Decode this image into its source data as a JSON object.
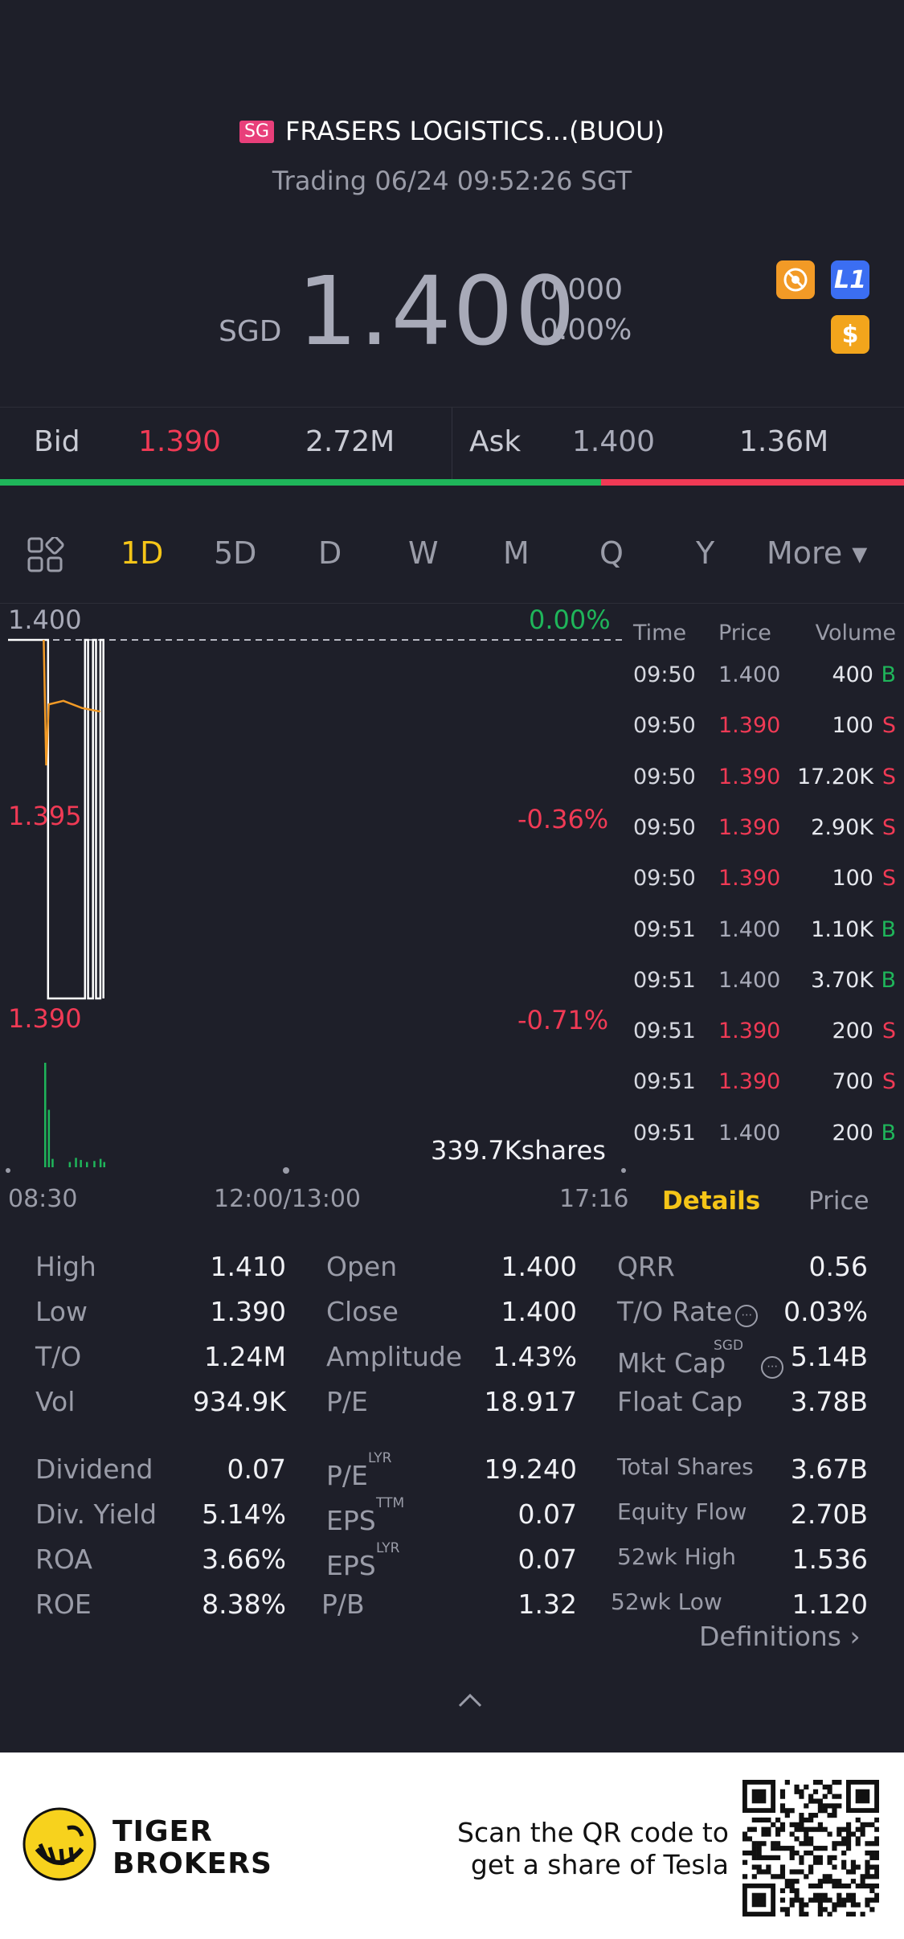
{
  "header": {
    "market_badge": "SG",
    "title": "FRASERS LOGISTICS...(BUOU)",
    "status": "Trading 06/24 09:52:26 SGT"
  },
  "quote": {
    "currency": "SGD",
    "price": "1.400",
    "change": "0.000",
    "change_pct": "0.00%",
    "icons": [
      "no-trade-icon",
      "level1-icon",
      "dollar-icon"
    ],
    "icon_l1_text": "L1",
    "icon_dollar_text": "$"
  },
  "bid_ask": {
    "bid_label": "Bid",
    "bid_price": "1.390",
    "bid_volume": "2.72M",
    "ask_label": "Ask",
    "ask_price": "1.400",
    "ask_volume": "1.36M",
    "bid_share": 0.665
  },
  "tabs": [
    "1D",
    "5D",
    "D",
    "W",
    "M",
    "Q",
    "Y",
    "More ▾"
  ],
  "active_tab": "1D",
  "chart": {
    "y_top": "1.400",
    "y_mid": "1.395",
    "y_bottom": "1.390",
    "pct_top": "0.00%",
    "pct_mid": "-0.36%",
    "pct_bottom": "-0.71%",
    "volume_label": "339.7Kshares",
    "x_start": "08:30",
    "x_mid": "12:00/13:00",
    "x_end": "17:16"
  },
  "chart_data": {
    "type": "line",
    "ylim": [
      1.39,
      1.4
    ],
    "prev_close": 1.4,
    "price_series": [
      {
        "t": 0.0,
        "v": 1.4
      },
      {
        "t": 0.045,
        "v": 1.4
      },
      {
        "t": 0.065,
        "v": 1.4
      },
      {
        "t": 0.065,
        "v": 1.39
      },
      {
        "t": 0.125,
        "v": 1.39
      },
      {
        "t": 0.125,
        "v": 1.4
      },
      {
        "t": 0.13,
        "v": 1.4
      },
      {
        "t": 0.13,
        "v": 1.39
      },
      {
        "t": 0.138,
        "v": 1.39
      },
      {
        "t": 0.138,
        "v": 1.4
      },
      {
        "t": 0.143,
        "v": 1.4
      },
      {
        "t": 0.143,
        "v": 1.39
      },
      {
        "t": 0.15,
        "v": 1.39
      },
      {
        "t": 0.15,
        "v": 1.4
      },
      {
        "t": 0.155,
        "v": 1.4
      },
      {
        "t": 0.155,
        "v": 1.39
      }
    ],
    "avg_series": [
      {
        "t": 0.058,
        "v": 1.4
      },
      {
        "t": 0.06,
        "v": 1.3982
      },
      {
        "t": 0.062,
        "v": 1.3965
      },
      {
        "t": 0.066,
        "v": 1.3982
      },
      {
        "t": 0.09,
        "v": 1.3983
      },
      {
        "t": 0.12,
        "v": 1.3981
      },
      {
        "t": 0.15,
        "v": 1.398
      }
    ],
    "volume_bars": [
      {
        "t": 0.06,
        "v": 1.0
      },
      {
        "t": 0.066,
        "v": 0.55
      },
      {
        "t": 0.072,
        "v": 0.08
      },
      {
        "t": 0.1,
        "v": 0.05
      },
      {
        "t": 0.11,
        "v": 0.09
      },
      {
        "t": 0.118,
        "v": 0.07
      },
      {
        "t": 0.128,
        "v": 0.05
      },
      {
        "t": 0.14,
        "v": 0.06
      },
      {
        "t": 0.15,
        "v": 0.08
      },
      {
        "t": 0.156,
        "v": 0.05
      }
    ]
  },
  "time_sales": {
    "headers": [
      "Time",
      "Price",
      "Volume"
    ],
    "rows": [
      {
        "time": "09:50",
        "price": "1.400",
        "volume": "400",
        "side": "B"
      },
      {
        "time": "09:50",
        "price": "1.390",
        "volume": "100",
        "side": "S"
      },
      {
        "time": "09:50",
        "price": "1.390",
        "volume": "17.20K",
        "side": "S"
      },
      {
        "time": "09:50",
        "price": "1.390",
        "volume": "2.90K",
        "side": "S"
      },
      {
        "time": "09:50",
        "price": "1.390",
        "volume": "100",
        "side": "S"
      },
      {
        "time": "09:51",
        "price": "1.400",
        "volume": "1.10K",
        "side": "B"
      },
      {
        "time": "09:51",
        "price": "1.400",
        "volume": "3.70K",
        "side": "B"
      },
      {
        "time": "09:51",
        "price": "1.390",
        "volume": "200",
        "side": "S"
      },
      {
        "time": "09:51",
        "price": "1.390",
        "volume": "700",
        "side": "S"
      },
      {
        "time": "09:51",
        "price": "1.400",
        "volume": "200",
        "side": "B"
      }
    ]
  },
  "detail_tabs": {
    "details": "Details",
    "price": "Price"
  },
  "stats": {
    "col1": [
      {
        "label": "High",
        "value": "1.410"
      },
      {
        "label": "Low",
        "value": "1.390"
      },
      {
        "label": "T/O",
        "value": "1.24M"
      },
      {
        "label": "Vol",
        "value": "934.9K"
      },
      {
        "label": "Dividend",
        "value": "0.07"
      },
      {
        "label": "Div. Yield",
        "value": "5.14%"
      },
      {
        "label": "ROA",
        "value": "3.66%"
      },
      {
        "label": "ROE",
        "value": "8.38%"
      }
    ],
    "col2": [
      {
        "label": "Open",
        "value": "1.400"
      },
      {
        "label": "Close",
        "value": "1.400"
      },
      {
        "label": "Amplitude",
        "value": "1.43%"
      },
      {
        "label": "P/E",
        "value": "18.917"
      },
      {
        "label": "P/E",
        "sup": "LYR",
        "value": "19.240"
      },
      {
        "label": "EPS",
        "sup": "TTM",
        "value": "0.07"
      },
      {
        "label": "EPS",
        "sup": "LYR",
        "value": "0.07"
      },
      {
        "label": "P/B",
        "value": "1.32"
      }
    ],
    "col3": [
      {
        "label": "QRR",
        "value": "0.56"
      },
      {
        "label": "T/O Rate",
        "value": "0.03%"
      },
      {
        "label": "Mkt Cap",
        "sup": "SGD",
        "value": "5.14B"
      },
      {
        "label": "Float Cap",
        "value": "3.78B"
      },
      {
        "label": "Total Shares",
        "value": "3.67B"
      },
      {
        "label": "Equity Flow",
        "value": "2.70B"
      },
      {
        "label": "52wk High",
        "value": "1.536"
      },
      {
        "label": "52wk Low",
        "value": "1.120"
      }
    ],
    "definitions": "Definitions ›",
    "info_glyph": "⋯"
  },
  "footer": {
    "brand_line1": "TIGER",
    "brand_line2": "BROKERS",
    "promo_line1": "Scan the QR code to",
    "promo_line2": "get a share of Tesla"
  },
  "colors": {
    "up": "#1fb55a",
    "down": "#f03a55",
    "neutral": "#a8aab8",
    "accent": "#f5c518",
    "avg_line": "#f29a26"
  }
}
